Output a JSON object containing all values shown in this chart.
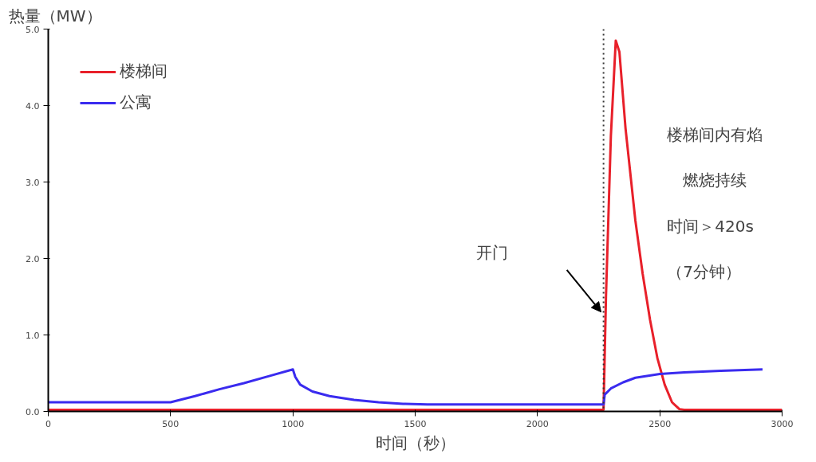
{
  "chart_data": {
    "type": "line",
    "xlabel": "时间（秒）",
    "ylabel": "热量（MW）",
    "xlim": [
      0,
      3000
    ],
    "xticks": [
      0,
      500,
      1000,
      1500,
      2000,
      2500,
      3000
    ],
    "ylim": [
      0,
      5
    ],
    "yticks": [
      {
        "value": 0,
        "label": "0.0"
      },
      {
        "value": 1,
        "label": "1.0"
      },
      {
        "value": 2,
        "label": "2.0"
      },
      {
        "value": 3,
        "label": "3.0"
      },
      {
        "value": 4,
        "label": "4.0"
      },
      {
        "value": 5,
        "label": "5.0"
      }
    ],
    "grid": false,
    "legend": "top left",
    "marker": "none",
    "line_style": "solid",
    "series": [
      {
        "name": "楼梯间",
        "color": "#e8202a",
        "x": [
          0,
          2270,
          2280,
          2300,
          2320,
          2335,
          2360,
          2400,
          2430,
          2460,
          2490,
          2520,
          2550,
          2580,
          2600,
          3000
        ],
        "values": [
          0.02,
          0.02,
          1.5,
          3.6,
          4.85,
          4.7,
          3.7,
          2.5,
          1.8,
          1.2,
          0.7,
          0.35,
          0.12,
          0.03,
          0.02,
          0.02
        ]
      },
      {
        "name": "公寓",
        "color": "#3a2bef",
        "x": [
          0,
          500,
          600,
          700,
          800,
          900,
          1000,
          1010,
          1030,
          1080,
          1150,
          1250,
          1350,
          1450,
          1550,
          2000,
          2270,
          2275,
          2300,
          2350,
          2400,
          2500,
          2600,
          2750,
          2920
        ],
        "values": [
          0.12,
          0.12,
          0.2,
          0.29,
          0.37,
          0.46,
          0.55,
          0.45,
          0.35,
          0.26,
          0.2,
          0.15,
          0.12,
          0.1,
          0.09,
          0.09,
          0.09,
          0.22,
          0.3,
          0.38,
          0.44,
          0.49,
          0.51,
          0.53,
          0.55
        ]
      }
    ],
    "ref_lines": [
      {
        "axis": "x",
        "value": 2270,
        "label": null,
        "color": "#333333",
        "line_style": "dotted"
      }
    ],
    "annotations": [
      "开门",
      "楼梯间内有焰",
      "燃烧持续",
      "时间＞420s",
      "（7分钟）"
    ]
  }
}
